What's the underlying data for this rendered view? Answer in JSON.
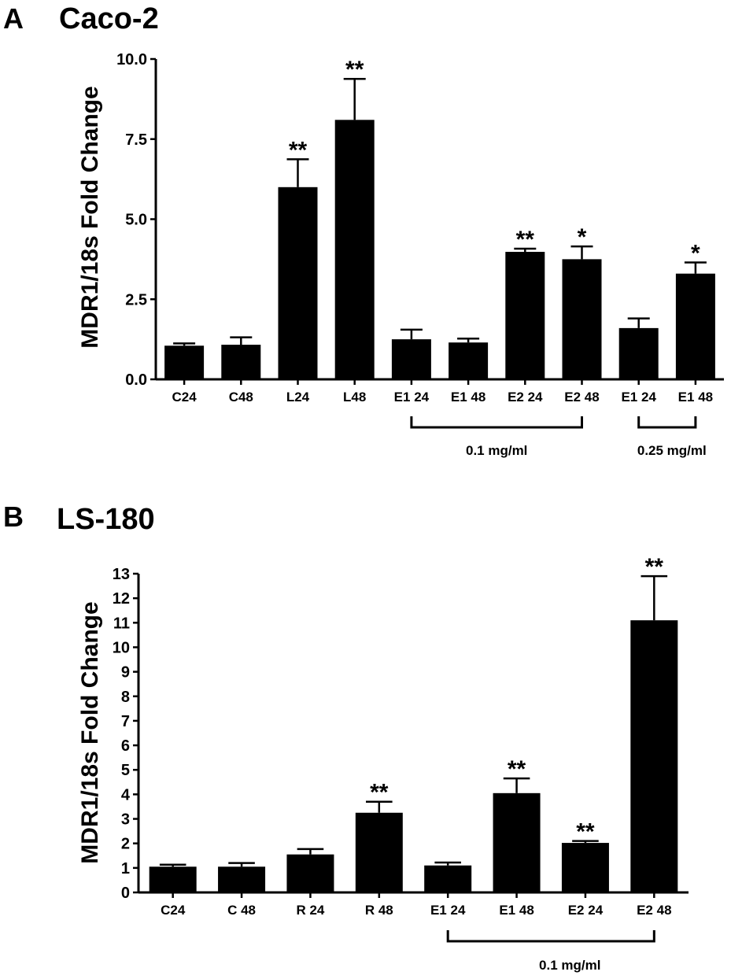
{
  "chart_data": [
    {
      "type": "bar",
      "panel": "A",
      "title": "Caco-2",
      "xlabel": "",
      "ylabel": "MDR1/18s Fold Change",
      "ylim": [
        0,
        10
      ],
      "yticks": [
        "0.0",
        "2.5",
        "5.0",
        "7.5",
        "10.0"
      ],
      "yticks_values": [
        0,
        2.5,
        5,
        7.5,
        10
      ],
      "categories": [
        "C24",
        "C48",
        "L24",
        "L48",
        "E1 24",
        "E1 48",
        "E2 24",
        "E2 48",
        "E1 24",
        "E1 48"
      ],
      "values": [
        1.05,
        1.08,
        6.0,
        8.1,
        1.25,
        1.15,
        3.98,
        3.75,
        1.6,
        3.3
      ],
      "errors": [
        0.07,
        0.23,
        0.87,
        1.28,
        0.3,
        0.12,
        0.1,
        0.4,
        0.3,
        0.35
      ],
      "significance": [
        "",
        "",
        "**",
        "**",
        "",
        "",
        "**",
        "*",
        "",
        "*"
      ],
      "brackets": [
        {
          "from": 4,
          "to": 7,
          "label": "0.1 mg/ml"
        },
        {
          "from": 8,
          "to": 9,
          "label": "0.25 mg/ml"
        }
      ],
      "bar_color": "#000000",
      "grid": false
    },
    {
      "type": "bar",
      "panel": "B",
      "title": "LS-180",
      "xlabel": "",
      "ylabel": "MDR1/18s Fold Change",
      "ylim": [
        0,
        13
      ],
      "yticks": [
        "0",
        "1",
        "2",
        "3",
        "4",
        "5",
        "6",
        "7",
        "8",
        "9",
        "10",
        "11",
        "12",
        "13"
      ],
      "yticks_values": [
        0,
        1,
        2,
        3,
        4,
        5,
        6,
        7,
        8,
        9,
        10,
        11,
        12,
        13
      ],
      "categories": [
        "C24",
        "C 48",
        "R 24",
        "R 48",
        "E1 24",
        "E1 48",
        "E2 24",
        "E2 48"
      ],
      "values": [
        1.05,
        1.05,
        1.55,
        3.25,
        1.1,
        4.05,
        2.02,
        11.1
      ],
      "errors": [
        0.08,
        0.15,
        0.22,
        0.45,
        0.12,
        0.6,
        0.08,
        1.8
      ],
      "significance": [
        "",
        "",
        "",
        "**",
        "",
        "**",
        "**",
        "**"
      ],
      "brackets": [
        {
          "from": 4,
          "to": 7,
          "label": "0.1 mg/ml"
        }
      ],
      "bar_color": "#000000",
      "grid": false
    }
  ]
}
